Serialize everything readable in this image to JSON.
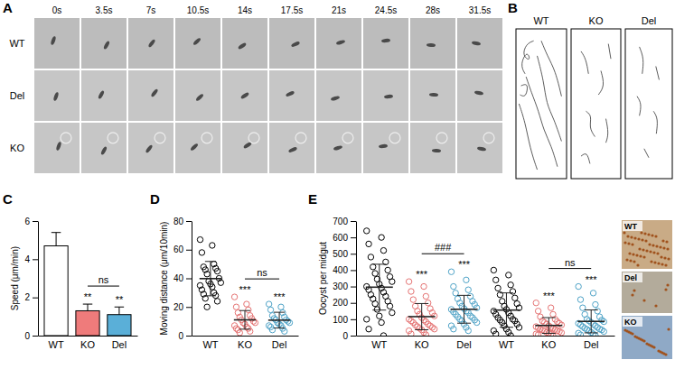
{
  "panel_labels": [
    "A",
    "B",
    "C",
    "D",
    "E"
  ],
  "panel_a": {
    "rows": [
      "WT",
      "Del",
      "KO"
    ],
    "times": [
      "0s",
      "3.5s",
      "7s",
      "10.5s",
      "14s",
      "17.5s",
      "21s",
      "24.5s",
      "28s",
      "31.5s"
    ]
  },
  "panel_b": {
    "columns": [
      "WT",
      "KO",
      "Del"
    ]
  },
  "chart_data": [
    {
      "type": "bar",
      "categories": [
        "WT",
        "KO",
        "Del"
      ],
      "values": [
        4.7,
        1.3,
        1.1
      ],
      "errors": [
        0.7,
        0.35,
        0.4
      ],
      "colors": [
        "#ffffff",
        "#ef7b7b",
        "#5aafd8"
      ],
      "y_label": "Speed (μm/min)",
      "ylim": [
        0,
        6
      ],
      "yticks": [
        0,
        2,
        4,
        6
      ],
      "annotations": [
        {
          "text": "**",
          "category": 1
        },
        {
          "text": "**",
          "category": 2
        },
        {
          "text": "ns",
          "from": 1,
          "to": 2
        }
      ]
    },
    {
      "type": "strip",
      "categories": [
        "WT",
        "KO",
        "Del"
      ],
      "values": [
        [
          67,
          63,
          58,
          50,
          48,
          47,
          46,
          45,
          43,
          40,
          38,
          37,
          36,
          35,
          34,
          32,
          30,
          29,
          28,
          26,
          24,
          20
        ],
        [
          27,
          22,
          20,
          18,
          16,
          14,
          13,
          12,
          11,
          10,
          9,
          9,
          8,
          7,
          6,
          5,
          5,
          4,
          3,
          2
        ],
        [
          22,
          20,
          18,
          16,
          14,
          13,
          12,
          11,
          11,
          10,
          9,
          9,
          8,
          7,
          7,
          6,
          5,
          4,
          3
        ]
      ],
      "means": [
        39.8,
        11,
        10.8
      ],
      "errors": [
        12,
        6.5,
        5.5
      ],
      "colors": [
        "#000000",
        "#e57373",
        "#4fa3c7"
      ],
      "marker": "open-circle",
      "y_label": "Moving distance (μm/10min)",
      "ylim": [
        0,
        80
      ],
      "yticks": [
        0,
        20,
        40,
        60,
        80
      ],
      "annotations": [
        {
          "text": "***",
          "category": 1
        },
        {
          "text": "***",
          "category": 2
        },
        {
          "text": "ns",
          "from": 1,
          "to": 2
        }
      ]
    },
    {
      "type": "strip",
      "categories": [
        "WT",
        "KO",
        "Del",
        "WT",
        "KO",
        "Del"
      ],
      "values": [
        [
          640,
          600,
          560,
          520,
          480,
          450,
          420,
          400,
          380,
          360,
          345,
          330,
          315,
          300,
          290,
          280,
          265,
          250,
          240,
          225,
          210,
          195,
          180,
          160,
          140,
          120,
          100,
          80,
          40,
          0
        ],
        [
          330,
          300,
          270,
          240,
          220,
          200,
          180,
          165,
          150,
          140,
          130,
          120,
          110,
          100,
          95,
          90,
          85,
          80,
          70,
          65,
          60,
          55,
          50,
          45,
          40,
          35,
          30,
          20,
          10,
          5
        ],
        [
          390,
          340,
          300,
          280,
          260,
          240,
          225,
          210,
          200,
          190,
          180,
          170,
          165,
          160,
          150,
          145,
          140,
          130,
          120,
          115,
          110,
          100,
          95,
          90,
          80,
          70,
          60,
          50,
          40,
          30
        ],
        [
          400,
          370,
          340,
          310,
          290,
          270,
          250,
          230,
          210,
          195,
          180,
          170,
          160,
          150,
          140,
          130,
          120,
          110,
          100,
          95,
          90,
          80,
          70,
          60,
          50,
          40,
          30,
          20,
          10,
          0
        ],
        [
          200,
          170,
          150,
          130,
          115,
          100,
          90,
          85,
          80,
          75,
          70,
          65,
          60,
          55,
          50,
          48,
          45,
          40,
          38,
          35,
          30,
          28,
          25,
          20,
          18,
          15,
          10,
          8,
          5,
          0
        ],
        [
          300,
          260,
          220,
          190,
          170,
          150,
          130,
          115,
          100,
          95,
          90,
          85,
          80,
          75,
          70,
          65,
          60,
          55,
          50,
          45,
          40,
          38,
          35,
          30,
          25,
          20,
          15,
          10,
          5,
          0
        ]
      ],
      "means": [
        296,
        116,
        161,
        156,
        62,
        87
      ],
      "errors": [
        140,
        80,
        85,
        105,
        48,
        70
      ],
      "colors": [
        "#000000",
        "#e57373",
        "#4fa3c7",
        "#000000",
        "#e57373",
        "#4fa3c7"
      ],
      "marker": "open-circle",
      "y_label": "Oocyst per midgut",
      "ylim": [
        0,
        700
      ],
      "yticks": [
        0,
        100,
        200,
        300,
        400,
        500,
        600,
        700
      ],
      "annotations": [
        {
          "text": "***",
          "category": 1
        },
        {
          "text": "***",
          "category": 2
        },
        {
          "text": "***",
          "category": 4
        },
        {
          "text": "***",
          "category": 5
        },
        {
          "text": "###",
          "from": 1,
          "to": 2
        },
        {
          "text": "ns",
          "from": 4,
          "to": 5
        }
      ]
    }
  ],
  "panel_e_images": {
    "labels": [
      "WT",
      "Del",
      "KO"
    ]
  }
}
